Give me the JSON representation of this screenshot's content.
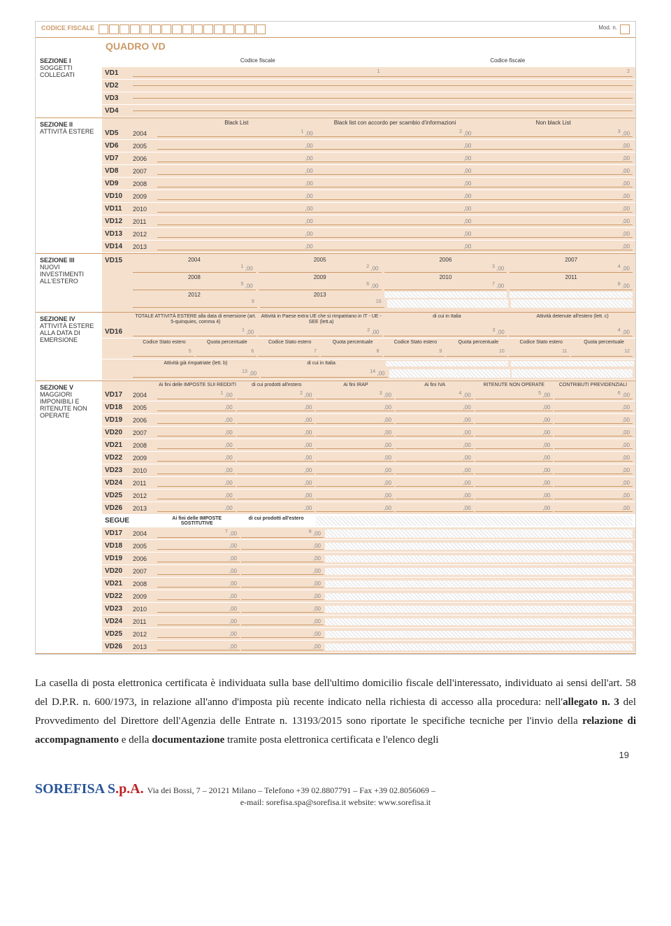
{
  "header": {
    "cf_label": "CODICE FISCALE",
    "mod": "Mod. n."
  },
  "quadro": "QUADRO VD",
  "sections": {
    "s1": {
      "title": "SEZIONE I",
      "subtitle": "SOGGETTI COLLEGATI",
      "col1": "Codice fiscale",
      "col2": "Codice fiscale",
      "rows": [
        "VD1",
        "VD2",
        "VD3",
        "VD4"
      ]
    },
    "s2": {
      "title": "SEZIONE II",
      "subtitle": "ATTIVITÀ ESTERE",
      "h1": "Black List",
      "h2": "Black list con accordo per scambio d'informazioni",
      "h3": "Non black List"
    },
    "s3": {
      "title": "SEZIONE III",
      "subtitle": "NUOVI INVESTIMENTI ALL'ESTERO",
      "vd": "VD15"
    },
    "s4": {
      "title": "SEZIONE IV",
      "subtitle": "ATTIVITÀ ESTERE ALLA DATA DI EMERSIONE",
      "vd": "VD16",
      "h1": "TOTALE ATTIVITÀ ESTERE alla data di emersione (art. 5-quinquies, comma 4)",
      "h2": "Attività in Paese extra UE che si rimpatriano in IT - UE - SEE (lett.a)",
      "h3": "di cui in Italia",
      "h4": "Attività detenute all'estero (lett. c)",
      "cs": "Codice Stato estero",
      "qp": "Quota percentuale",
      "r1": "Attività già rimpatriate (lett. b)",
      "r2": "di cui in Italia"
    },
    "s5": {
      "title": "SEZIONE V",
      "subtitle": "MAGGIORI IMPONIBILI E RITENUTE NON OPERATE",
      "h1": "Ai fini delle IMPOSTE SUI REDDITI",
      "h2": "di cui prodotti all'estero",
      "h3": "Ai fini IRAP",
      "h4": "Ai fini IVA",
      "h5": "RITENUTE NON OPERATE",
      "h6": "CONTRIBUTI PREVIDENZIALI",
      "segue": "SEGUE",
      "s1": "Ai fini delle IMPOSTE SOSTITUTIVE",
      "s2": "di cui prodotti all'estero"
    }
  },
  "s2rows": [
    {
      "vd": "VD5",
      "y": "2004"
    },
    {
      "vd": "VD6",
      "y": "2005"
    },
    {
      "vd": "VD7",
      "y": "2006"
    },
    {
      "vd": "VD8",
      "y": "2007"
    },
    {
      "vd": "VD9",
      "y": "2008"
    },
    {
      "vd": "VD10",
      "y": "2009"
    },
    {
      "vd": "VD11",
      "y": "2010"
    },
    {
      "vd": "VD12",
      "y": "2011"
    },
    {
      "vd": "VD13",
      "y": "2012"
    },
    {
      "vd": "VD14",
      "y": "2013"
    }
  ],
  "s3years": [
    "2004",
    "2005",
    "2006",
    "2007",
    "2008",
    "2009",
    "2010",
    "2011",
    "2012",
    "2013"
  ],
  "s5rows": [
    {
      "vd": "VD17",
      "y": "2004"
    },
    {
      "vd": "VD18",
      "y": "2005"
    },
    {
      "vd": "VD19",
      "y": "2006"
    },
    {
      "vd": "VD20",
      "y": "2007"
    },
    {
      "vd": "VD21",
      "y": "2008"
    },
    {
      "vd": "VD22",
      "y": "2009"
    },
    {
      "vd": "VD23",
      "y": "2010"
    },
    {
      "vd": "VD24",
      "y": "2011"
    },
    {
      "vd": "VD25",
      "y": "2012"
    },
    {
      "vd": "VD26",
      "y": "2013"
    }
  ],
  "decimal": ",00",
  "body": {
    "p1a": "La casella di posta elettronica certificata è individuata sulla base dell'ultimo domicilio fiscale dell'interessato, individuato ai sensi dell'art. 58 del D.P.R. n. 600/1973, in relazione all'anno d'imposta più recente indicato nella richiesta di accesso alla procedura: nell'",
    "p1b": "allegato n. 3",
    "p1c": " del Provvedimento del Direttore dell'Agenzia delle Entrate n. 13193/2015 sono riportate le specifiche tecniche per l'invio della ",
    "p1d": "relazione di accompagnamento",
    "p1e": " e della ",
    "p1f": "documentazione",
    "p1g": " tramite posta elettronica certificata e l'elenco degli"
  },
  "pagenum": "19",
  "footer": {
    "company": "SOREFISA S",
    "pa": ".p.A.",
    "addr": " Via dei Bossi, 7 – 20121 Milano – Telefono +39 02.8807791 – Fax +39 02.8056069 –",
    "email": "e-mail:  sorefisa.spa@sorefisa.it   website: www.sorefisa.it"
  }
}
